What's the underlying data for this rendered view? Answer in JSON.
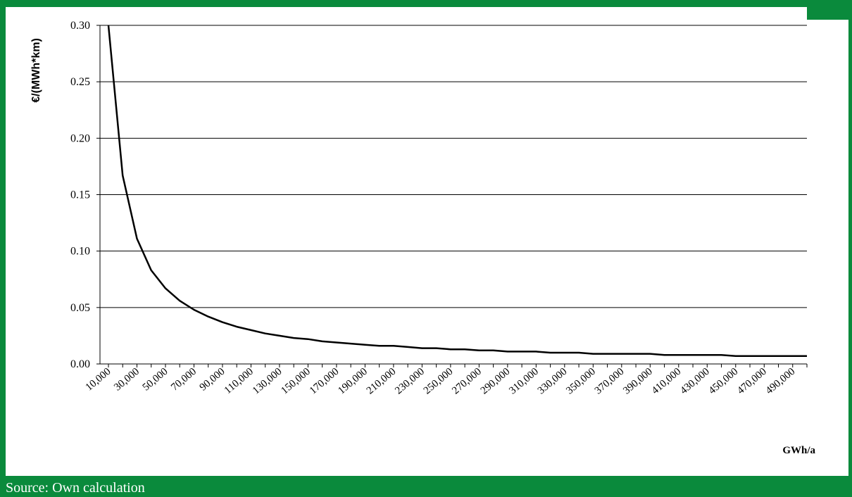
{
  "source_text": "Source: Own calculation",
  "chart_data": {
    "type": "line",
    "title": "",
    "xlabel": "GWh/a",
    "ylabel": "€/(MWh*km)",
    "ylim": [
      0,
      0.3
    ],
    "yticks": [
      "0.00",
      "0.05",
      "0.10",
      "0.15",
      "0.20",
      "0.25",
      "0.30"
    ],
    "xtick_labels": [
      "10,000",
      "30,000",
      "50,000",
      "70,000",
      "90,000",
      "110,000",
      "130,000",
      "150,000",
      "170,000",
      "190,000",
      "210,000",
      "230,000",
      "250,000",
      "270,000",
      "290,000",
      "310,000",
      "330,000",
      "350,000",
      "370,000",
      "390,000",
      "410,000",
      "430,000",
      "450,000",
      "470,000",
      "490,000"
    ],
    "x": [
      10000,
      20000,
      30000,
      40000,
      50000,
      60000,
      70000,
      80000,
      90000,
      100000,
      110000,
      120000,
      130000,
      140000,
      150000,
      160000,
      170000,
      180000,
      190000,
      200000,
      210000,
      220000,
      230000,
      240000,
      250000,
      260000,
      270000,
      280000,
      290000,
      300000,
      310000,
      320000,
      330000,
      340000,
      350000,
      360000,
      370000,
      380000,
      390000,
      400000,
      410000,
      420000,
      430000,
      440000,
      450000,
      460000,
      470000,
      480000,
      490000,
      500000
    ],
    "series": [
      {
        "values": [
          0.3,
          0.167,
          0.111,
          0.083,
          0.067,
          0.056,
          0.048,
          0.042,
          0.037,
          0.033,
          0.03,
          0.027,
          0.025,
          0.023,
          0.022,
          0.02,
          0.019,
          0.018,
          0.017,
          0.016,
          0.016,
          0.015,
          0.014,
          0.014,
          0.013,
          0.013,
          0.012,
          0.012,
          0.011,
          0.011,
          0.011,
          0.01,
          0.01,
          0.01,
          0.009,
          0.009,
          0.009,
          0.009,
          0.009,
          0.008,
          0.008,
          0.008,
          0.008,
          0.008,
          0.007,
          0.007,
          0.007,
          0.007,
          0.007,
          0.007
        ],
        "color": "#000000"
      }
    ],
    "grid": true,
    "legend": "none"
  },
  "colors": {
    "frame": "#0a8a3c",
    "plot_bg": "#ffffff",
    "line": "#000000"
  }
}
